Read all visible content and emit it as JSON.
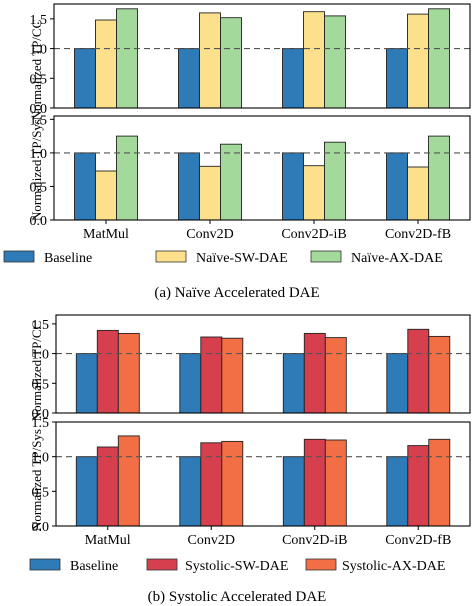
{
  "figures": [
    {
      "caption": "(a) Naïve Accelerated DAE",
      "categories": [
        "MatMul",
        "Conv2D",
        "Conv2D-iB",
        "Conv2D-fB"
      ],
      "legend": [
        {
          "label": "Baseline",
          "color": "#2e7bb8"
        },
        {
          "label": "Naïve-SW-DAE",
          "color": "#fce08c"
        },
        {
          "label": "Naïve-AX-DAE",
          "color": "#a3d99b"
        }
      ],
      "ylabels": [
        "Normalized TP/CC",
        "Normalized TP/Sys"
      ]
    },
    {
      "caption": "(b) Systolic Accelerated DAE",
      "categories": [
        "MatMul",
        "Conv2D",
        "Conv2D-iB",
        "Conv2D-fB"
      ],
      "legend": [
        {
          "label": "Baseline",
          "color": "#2e7bb8"
        },
        {
          "label": "Systolic-SW-DAE",
          "color": "#d6404e"
        },
        {
          "label": "Systolic-AX-DAE",
          "color": "#f26f45"
        }
      ],
      "ylabels": [
        "Normalized TP/CC",
        "Normalized TP/Sys"
      ]
    }
  ],
  "chart_data": [
    {
      "type": "bar",
      "figure": 0,
      "panel": "top",
      "ylabel": "Normalized TP/CC",
      "categories": [
        "MatMul",
        "Conv2D",
        "Conv2D-iB",
        "Conv2D-fB"
      ],
      "ylim": [
        0,
        1.75
      ],
      "yticks": [
        "0.0",
        "0.5",
        "1.0",
        "1.5"
      ],
      "xtick_labels": false,
      "reference_line": 1.0,
      "series": [
        {
          "name": "Baseline",
          "color": "#2e7bb8",
          "values": [
            1.0,
            1.0,
            1.0,
            1.0
          ]
        },
        {
          "name": "Naïve-SW-DAE",
          "color": "#fce08c",
          "values": [
            1.48,
            1.6,
            1.62,
            1.58
          ]
        },
        {
          "name": "Naïve-AX-DAE",
          "color": "#a3d99b",
          "values": [
            1.67,
            1.52,
            1.55,
            1.67
          ]
        }
      ]
    },
    {
      "type": "bar",
      "figure": 0,
      "panel": "bottom",
      "ylabel": "Normalized TP/Sys",
      "categories": [
        "MatMul",
        "Conv2D",
        "Conv2D-iB",
        "Conv2D-fB"
      ],
      "ylim": [
        0,
        1.55
      ],
      "yticks": [
        "0.0",
        "0.5",
        "1.0",
        "1.5"
      ],
      "xtick_labels": true,
      "reference_line": 1.0,
      "series": [
        {
          "name": "Baseline",
          "color": "#2e7bb8",
          "values": [
            1.0,
            1.0,
            1.0,
            1.0
          ]
        },
        {
          "name": "Naïve-SW-DAE",
          "color": "#fce08c",
          "values": [
            0.73,
            0.8,
            0.81,
            0.79
          ]
        },
        {
          "name": "Naïve-AX-DAE",
          "color": "#a3d99b",
          "values": [
            1.25,
            1.13,
            1.16,
            1.25
          ]
        }
      ]
    },
    {
      "type": "bar",
      "figure": 1,
      "panel": "top",
      "ylabel": "Normalized TP/CC",
      "categories": [
        "MatMul",
        "Conv2D",
        "Conv2D-iB",
        "Conv2D-fB"
      ],
      "ylim": [
        0,
        1.65
      ],
      "yticks": [
        "0.0",
        "0.5",
        "1.0",
        "1.5"
      ],
      "xtick_labels": false,
      "reference_line": 1.0,
      "series": [
        {
          "name": "Baseline",
          "color": "#2e7bb8",
          "values": [
            1.0,
            1.0,
            1.0,
            1.0
          ]
        },
        {
          "name": "Systolic-SW-DAE",
          "color": "#d6404e",
          "values": [
            1.39,
            1.28,
            1.34,
            1.41
          ]
        },
        {
          "name": "Systolic-AX-DAE",
          "color": "#f26f45",
          "values": [
            1.34,
            1.26,
            1.27,
            1.29
          ]
        }
      ]
    },
    {
      "type": "bar",
      "figure": 1,
      "panel": "bottom",
      "ylabel": "Normalized TP/Sys",
      "categories": [
        "MatMul",
        "Conv2D",
        "Conv2D-iB",
        "Conv2D-fB"
      ],
      "ylim": [
        0,
        1.5
      ],
      "yticks": [
        "0.0",
        "0.5",
        "1.0",
        "1.5"
      ],
      "xtick_labels": true,
      "reference_line": 1.0,
      "series": [
        {
          "name": "Baseline",
          "color": "#2e7bb8",
          "values": [
            1.0,
            1.0,
            1.0,
            1.0
          ]
        },
        {
          "name": "Systolic-SW-DAE",
          "color": "#d6404e",
          "values": [
            1.14,
            1.2,
            1.25,
            1.16
          ]
        },
        {
          "name": "Systolic-AX-DAE",
          "color": "#f26f45",
          "values": [
            1.3,
            1.22,
            1.24,
            1.25
          ]
        }
      ]
    }
  ]
}
